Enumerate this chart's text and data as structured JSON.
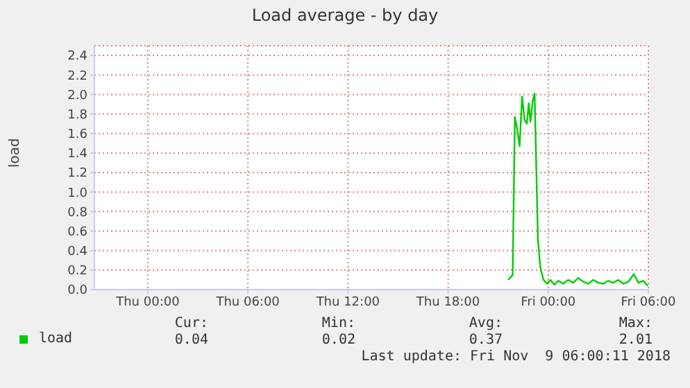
{
  "chart_data": {
    "type": "line",
    "title": "Load average - by day",
    "ylabel": "load",
    "x": [
      "2018-11-08T21:36",
      "2018-11-08T21:52",
      "2018-11-08T22:00",
      "2018-11-08T22:08",
      "2018-11-08T22:17",
      "2018-11-08T22:26",
      "2018-11-08T22:35",
      "2018-11-08T22:43",
      "2018-11-08T22:50",
      "2018-11-08T22:56",
      "2018-11-08T23:04",
      "2018-11-08T23:11",
      "2018-11-08T23:23",
      "2018-11-08T23:32",
      "2018-11-08T23:43",
      "2018-11-08T23:56",
      "2018-11-09T00:08",
      "2018-11-09T00:22",
      "2018-11-09T00:36",
      "2018-11-09T00:54",
      "2018-11-09T01:12",
      "2018-11-09T01:30",
      "2018-11-09T01:48",
      "2018-11-09T02:06",
      "2018-11-09T02:24",
      "2018-11-09T02:42",
      "2018-11-09T03:00",
      "2018-11-09T03:18",
      "2018-11-09T03:36",
      "2018-11-09T03:54",
      "2018-11-09T04:12",
      "2018-11-09T04:30",
      "2018-11-09T04:48",
      "2018-11-09T05:08",
      "2018-11-09T05:24",
      "2018-11-09T05:42",
      "2018-11-09T05:58"
    ],
    "series": [
      {
        "name": "load",
        "color": "#00cc00",
        "values": [
          0.1,
          0.15,
          1.77,
          1.65,
          1.47,
          1.98,
          1.74,
          1.7,
          1.91,
          1.72,
          1.93,
          2.01,
          0.51,
          0.22,
          0.1,
          0.06,
          0.1,
          0.05,
          0.09,
          0.06,
          0.1,
          0.07,
          0.12,
          0.08,
          0.06,
          0.1,
          0.07,
          0.06,
          0.09,
          0.07,
          0.1,
          0.06,
          0.08,
          0.16,
          0.07,
          0.09,
          0.04
        ]
      }
    ],
    "xlim": [
      "2018-11-07T20:48",
      "2018-11-09T06:00"
    ],
    "xticks": [
      {
        "value": "2018-11-08T00:00",
        "label": "Thu 00:00"
      },
      {
        "value": "2018-11-08T06:00",
        "label": "Thu 06:00"
      },
      {
        "value": "2018-11-08T12:00",
        "label": "Thu 12:00"
      },
      {
        "value": "2018-11-08T18:00",
        "label": "Thu 18:00"
      },
      {
        "value": "2018-11-09T00:00",
        "label": "Fri 00:00"
      },
      {
        "value": "2018-11-09T06:00",
        "label": "Fri 06:00"
      }
    ],
    "ylim": [
      0,
      2.5
    ],
    "yticks": [
      {
        "value": 0,
        "label": "0.0"
      },
      {
        "value": 0.2,
        "label": "0.2"
      },
      {
        "value": 0.4,
        "label": "0.4"
      },
      {
        "value": 0.6,
        "label": "0.6"
      },
      {
        "value": 0.8,
        "label": "0.8"
      },
      {
        "value": 1,
        "label": "1.0"
      },
      {
        "value": 1.2,
        "label": "1.2"
      },
      {
        "value": 1.4,
        "label": "1.4"
      },
      {
        "value": 1.6,
        "label": "1.6"
      },
      {
        "value": 1.8,
        "label": "1.8"
      },
      {
        "value": 2,
        "label": "2.0"
      },
      {
        "value": 2.2,
        "label": "2.2"
      },
      {
        "value": 2.4,
        "label": "2.4"
      }
    ],
    "grid": true,
    "legend": "bottom",
    "marker": "none",
    "line_style": "solid",
    "annotations": [
      "Cur:",
      "Min:",
      "Avg:",
      "Max:",
      "0.04",
      "0.02",
      "0.37",
      "2.01",
      "Last update: Fri Nov  9 06:00:11 2018"
    ]
  }
}
